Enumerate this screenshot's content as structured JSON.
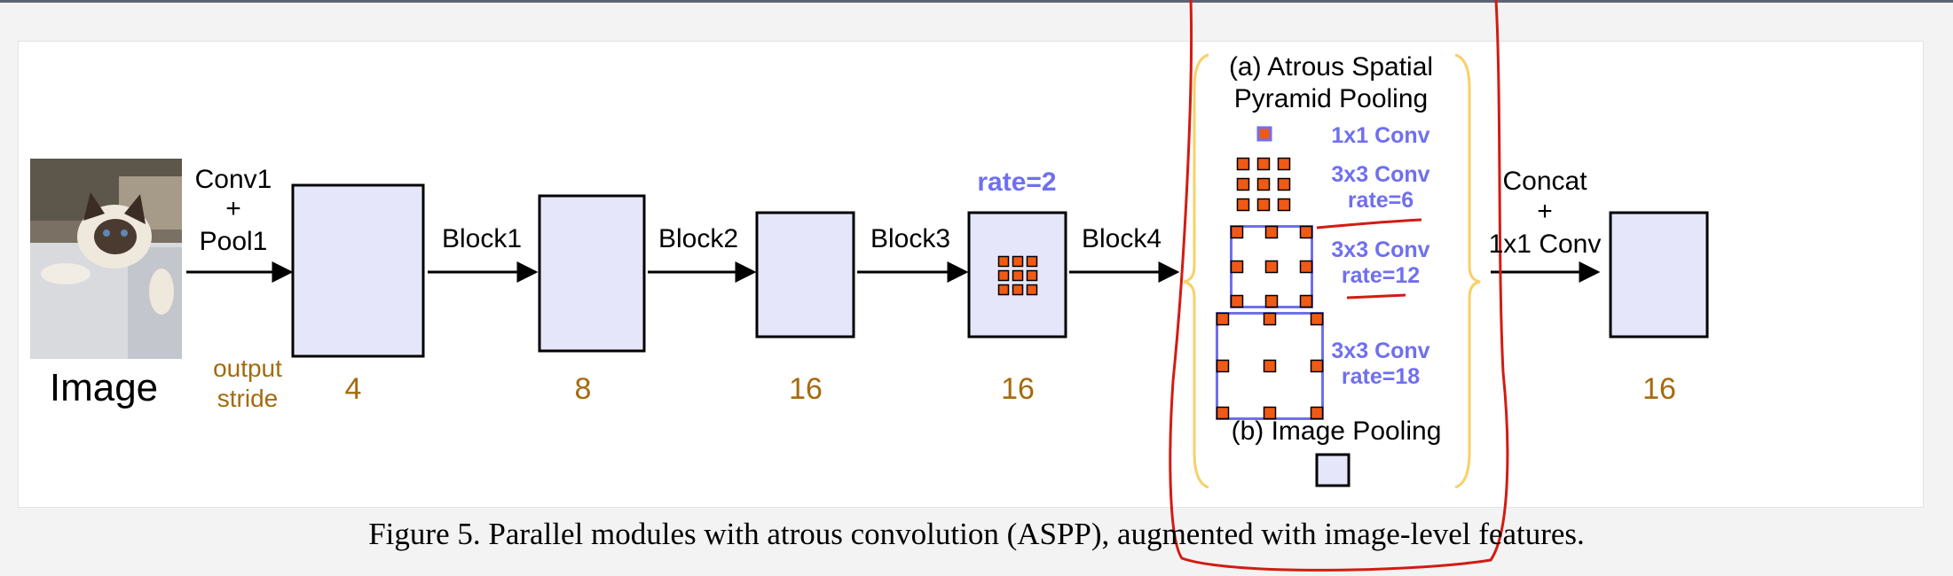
{
  "colors": {
    "box_fill": "#e6e6fa",
    "stride": "#a46b0e",
    "rate": "#6f6fef",
    "filter_dot": "#f05a14",
    "bracket": "#f7d166",
    "ink": "#d31b12"
  },
  "image": {
    "label": "Image",
    "icon": "cat-photo"
  },
  "stage_labels": {
    "conv1": "Conv1",
    "plus1": "+",
    "pool1": "Pool1",
    "block1": "Block1",
    "block2": "Block2",
    "block3": "Block3",
    "block4": "Block4",
    "concat": "Concat",
    "plus2": "+",
    "conv1x1": "1x1 Conv"
  },
  "output_stride": {
    "line1": "output",
    "line2": "stride"
  },
  "strides": [
    "4",
    "8",
    "16",
    "16",
    "16"
  ],
  "block4_rate": "rate=2",
  "aspp": {
    "title_line1": "(a) Atrous Spatial",
    "title_line2": "Pyramid Pooling",
    "branches": [
      {
        "line1": "1x1 Conv",
        "line2": ""
      },
      {
        "line1": "3x3 Conv",
        "line2": "rate=6"
      },
      {
        "line1": "3x3 Conv",
        "line2": "rate=12"
      },
      {
        "line1": "3x3 Conv",
        "line2": "rate=18"
      }
    ],
    "image_pooling": "(b) Image Pooling"
  },
  "caption": "Figure 5. Parallel modules with atrous convolution (ASPP), augmented with image-level features."
}
